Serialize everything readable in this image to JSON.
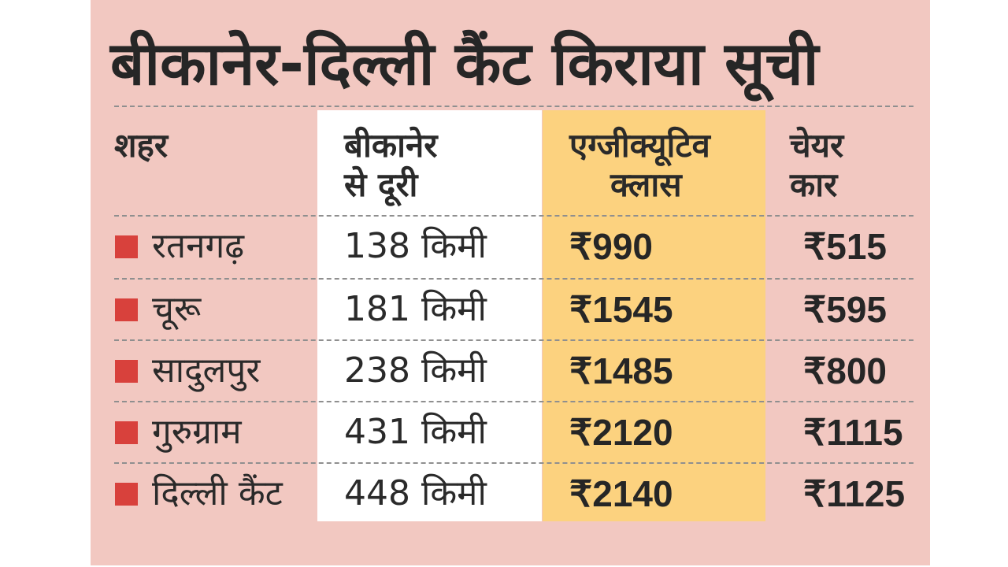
{
  "title": "बीकानेर-दिल्ली कैंट किराया सूची",
  "colors": {
    "background": "#f2c8c1",
    "distance_column": "#ffffff",
    "executive_column": "#fcd27f",
    "marker": "#d8413c"
  },
  "headers": {
    "city": "शहर",
    "distance_line1": "बीकानेर",
    "distance_line2": "से दूरी",
    "executive_line1": "एग्जीक्यूटिव",
    "executive_line2": "क्लास",
    "chair_line1": "चेयर",
    "chair_line2": "कार"
  },
  "rows": [
    {
      "city": "रतनगढ़",
      "distance": "138 किमी",
      "executive": "₹990",
      "chair": "₹515"
    },
    {
      "city": "चूरू",
      "distance": "181 किमी",
      "executive": "₹1545",
      "chair": "₹595"
    },
    {
      "city": "सादुलपुर",
      "distance": "238 किमी",
      "executive": "₹1485",
      "chair": "₹800"
    },
    {
      "city": "गुरुग्राम",
      "distance": "431 किमी",
      "executive": "₹2120",
      "chair": "₹1115"
    },
    {
      "city": "दिल्ली कैंट",
      "distance": "448 किमी",
      "executive": "₹2140",
      "chair": "₹1125"
    }
  ]
}
